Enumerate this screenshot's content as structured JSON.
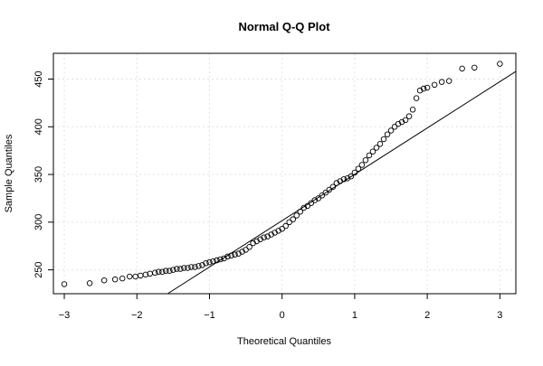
{
  "chart_data": {
    "type": "scatter",
    "title": "Normal Q-Q Plot",
    "xlabel": "Theoretical Quantiles",
    "ylabel": "Sample Quantiles",
    "xlim": [
      -3.15,
      3.22
    ],
    "ylim": [
      225,
      477
    ],
    "x_ticks": [
      -3,
      -2,
      -1,
      0,
      1,
      2,
      3
    ],
    "y_ticks": [
      250,
      300,
      350,
      400,
      450
    ],
    "x_tick_labels": [
      "−3",
      "−2",
      "−1",
      "0",
      "1",
      "2",
      "3"
    ],
    "y_tick_labels": [
      "250",
      "300",
      "350",
      "400",
      "450"
    ],
    "grid": true,
    "marker": "open-circle",
    "series": [
      {
        "points": [
          [
            -3.0,
            235
          ],
          [
            -2.65,
            236
          ],
          [
            -2.45,
            239
          ],
          [
            -2.3,
            240
          ],
          [
            -2.2,
            241
          ],
          [
            -2.1,
            243
          ],
          [
            -2.02,
            243
          ],
          [
            -1.95,
            244
          ],
          [
            -1.88,
            245
          ],
          [
            -1.82,
            246
          ],
          [
            -1.75,
            247
          ],
          [
            -1.7,
            248
          ],
          [
            -1.65,
            248
          ],
          [
            -1.6,
            249
          ],
          [
            -1.55,
            249
          ],
          [
            -1.5,
            250
          ],
          [
            -1.45,
            251
          ],
          [
            -1.4,
            251
          ],
          [
            -1.35,
            252
          ],
          [
            -1.3,
            252
          ],
          [
            -1.25,
            253
          ],
          [
            -1.2,
            253
          ],
          [
            -1.15,
            254
          ],
          [
            -1.1,
            255
          ],
          [
            -1.05,
            257
          ],
          [
            -1.0,
            258
          ],
          [
            -0.95,
            259
          ],
          [
            -0.9,
            260
          ],
          [
            -0.85,
            261
          ],
          [
            -0.8,
            262
          ],
          [
            -0.75,
            264
          ],
          [
            -0.7,
            265
          ],
          [
            -0.65,
            266
          ],
          [
            -0.6,
            267
          ],
          [
            -0.55,
            269
          ],
          [
            -0.5,
            271
          ],
          [
            -0.45,
            274
          ],
          [
            -0.4,
            278
          ],
          [
            -0.35,
            280
          ],
          [
            -0.3,
            282
          ],
          [
            -0.25,
            284
          ],
          [
            -0.2,
            285
          ],
          [
            -0.15,
            287
          ],
          [
            -0.1,
            289
          ],
          [
            -0.05,
            291
          ],
          [
            0.0,
            293
          ],
          [
            0.05,
            296
          ],
          [
            0.1,
            300
          ],
          [
            0.15,
            303
          ],
          [
            0.2,
            307
          ],
          [
            0.25,
            311
          ],
          [
            0.3,
            315
          ],
          [
            0.35,
            317
          ],
          [
            0.4,
            320
          ],
          [
            0.45,
            323
          ],
          [
            0.5,
            325
          ],
          [
            0.55,
            328
          ],
          [
            0.6,
            331
          ],
          [
            0.65,
            334
          ],
          [
            0.7,
            337
          ],
          [
            0.75,
            341
          ],
          [
            0.8,
            343
          ],
          [
            0.85,
            345
          ],
          [
            0.9,
            346
          ],
          [
            0.95,
            348
          ],
          [
            1.0,
            352
          ],
          [
            1.05,
            356
          ],
          [
            1.1,
            360
          ],
          [
            1.15,
            365
          ],
          [
            1.2,
            370
          ],
          [
            1.25,
            374
          ],
          [
            1.3,
            378
          ],
          [
            1.35,
            382
          ],
          [
            1.4,
            387
          ],
          [
            1.45,
            392
          ],
          [
            1.5,
            396
          ],
          [
            1.55,
            400
          ],
          [
            1.6,
            403
          ],
          [
            1.65,
            405
          ],
          [
            1.7,
            407
          ],
          [
            1.75,
            411
          ],
          [
            1.8,
            418
          ],
          [
            1.85,
            430
          ],
          [
            1.9,
            438
          ],
          [
            1.95,
            440
          ],
          [
            2.0,
            441
          ],
          [
            2.1,
            444
          ],
          [
            2.2,
            447
          ],
          [
            2.3,
            448
          ],
          [
            2.48,
            461
          ],
          [
            2.65,
            462
          ],
          [
            3.0,
            466
          ]
        ]
      }
    ],
    "reference_line": [
      [
        -1.5767,
        225
      ],
      [
        3.22,
        458
      ]
    ]
  }
}
